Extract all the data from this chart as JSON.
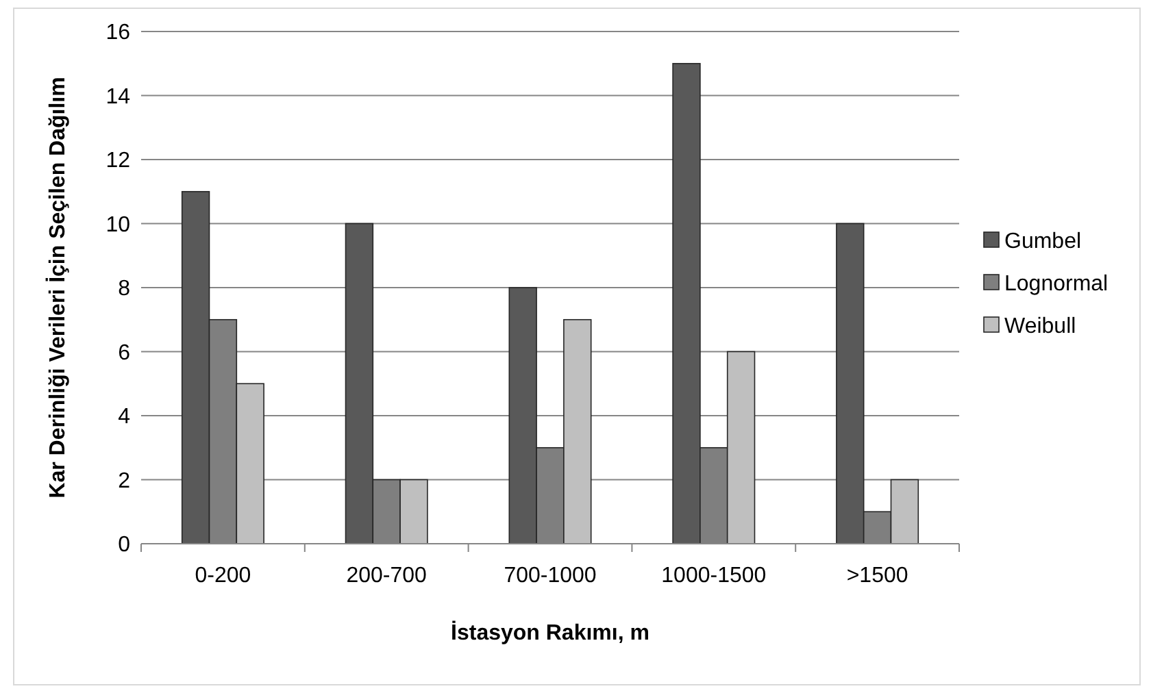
{
  "chart_data": {
    "type": "bar",
    "xlabel": "İstasyon Rakımı, m",
    "ylabel": "Kar Derinliği Verileri İçin Seçilen Dağılım",
    "categories": [
      "0-200",
      "200-700",
      "700-1000",
      "1000-1500",
      ">1500"
    ],
    "series": [
      {
        "name": "Gumbel",
        "color": "#595959",
        "values": [
          11,
          10,
          8,
          15,
          10
        ]
      },
      {
        "name": "Lognormal",
        "color": "#7f7f7f",
        "values": [
          7,
          2,
          3,
          3,
          1
        ]
      },
      {
        "name": "Weibull",
        "color": "#bfbfbf",
        "values": [
          5,
          2,
          7,
          6,
          2
        ]
      }
    ],
    "ylim": [
      0,
      16
    ],
    "yticks": [
      0,
      2,
      4,
      6,
      8,
      10,
      12,
      14,
      16
    ],
    "grid": "y",
    "legend": "right"
  }
}
